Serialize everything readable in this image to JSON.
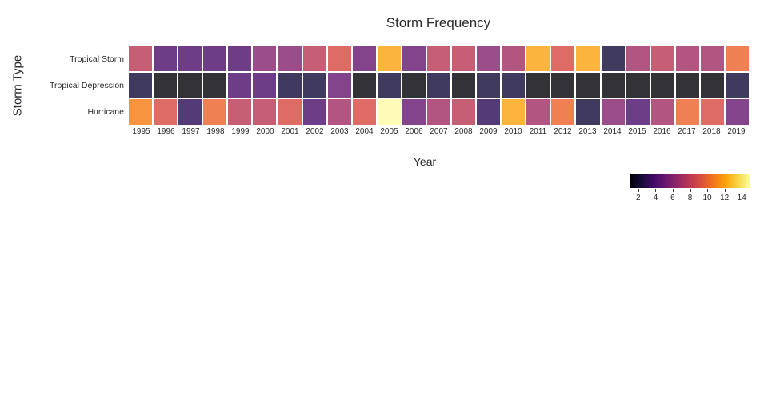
{
  "title": "Storm Frequency",
  "x_axis": {
    "title": "Year"
  },
  "y_axis": {
    "title": "Storm Type"
  },
  "chart_data": {
    "type": "heatmap",
    "x": [
      "1995",
      "1996",
      "1997",
      "1998",
      "1999",
      "2000",
      "2001",
      "2002",
      "2003",
      "2004",
      "2005",
      "2006",
      "2007",
      "2008",
      "2009",
      "2010",
      "2011",
      "2012",
      "2013",
      "2014",
      "2015",
      "2016",
      "2017",
      "2018",
      "2019"
    ],
    "y": [
      "Tropical Storm",
      "Tropical Depression",
      "Hurricane"
    ],
    "series": [
      {
        "name": "Tropical Storm",
        "values": [
          8,
          4,
          4,
          4,
          4,
          6,
          6,
          8,
          9,
          5,
          12,
          5,
          8,
          8,
          6,
          7,
          12,
          9,
          12,
          2,
          7,
          8,
          7,
          7,
          10
        ]
      },
      {
        "name": "Tropical Depression",
        "values": [
          2,
          1,
          1,
          1,
          4,
          4,
          2,
          2,
          5,
          1,
          2,
          1,
          2,
          1,
          2,
          2,
          1,
          1,
          1,
          1,
          1,
          1,
          1,
          1,
          2
        ]
      },
      {
        "name": "Hurricane",
        "values": [
          11,
          9,
          3,
          10,
          8,
          8,
          9,
          4,
          7,
          9,
          15,
          5,
          7,
          8,
          3,
          12,
          7,
          10,
          2,
          6,
          4,
          7,
          10,
          9,
          5
        ]
      }
    ],
    "zmin": 1,
    "zmax": 15,
    "colorscale_name": "inferno",
    "cell_opacity": 0.8,
    "value_colors": {
      "1": "#333237",
      "2": "#3F3A5E",
      "3": "#533B78",
      "4": "#6D3D87",
      "5": "#83448C",
      "6": "#9A4D89",
      "7": "#B25580",
      "8": "#C65F75",
      "9": "#DD6C64",
      "10": "#EE8054",
      "11": "#F69440",
      "12": "#FCB43C",
      "13": "#FDC84E",
      "14": "#FBE081",
      "15": "#FDFBB5"
    },
    "colorbar": {
      "ticks": [
        "2",
        "4",
        "6",
        "8",
        "10",
        "12",
        "14"
      ],
      "gradient": [
        "#000004",
        "#160B39",
        "#420A68",
        "#6A176E",
        "#932667",
        "#BC3754",
        "#DD513A",
        "#F37819",
        "#FCA50A",
        "#F6D746",
        "#FCFFA4"
      ]
    },
    "grid_gap_color": "#ffffff",
    "text_color": "#2a2a2e"
  }
}
